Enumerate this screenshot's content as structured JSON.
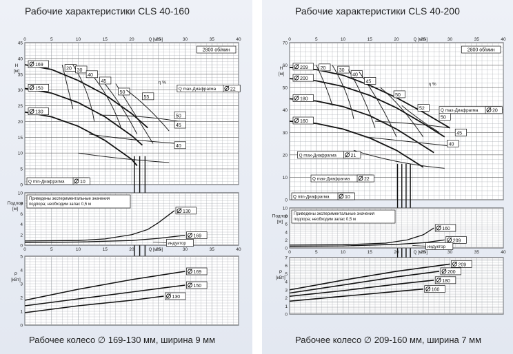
{
  "panels": [
    {
      "title": "Рабочие характеристики CLS 40-160",
      "caption": "Рабочее колесо ∅ 169-130 мм, ширина 9 мм"
    },
    {
      "title": "Рабочие характеристики CLS 40-200",
      "caption": "Рабочее колесо ∅ 209-160 мм, ширина 7 мм"
    }
  ],
  "chart_data": [
    {
      "type": "line",
      "title": "Рабочие характеристики CLS 40-160",
      "x_label": "Q [м³/ч]",
      "xlim": [
        0,
        40
      ],
      "x_ticks": [
        0,
        5,
        10,
        15,
        20,
        25,
        30,
        35,
        40
      ],
      "speed_label": "2800 об/мин",
      "head": {
        "y_label": "H [м]",
        "ylim": [
          0,
          45
        ],
        "y_ticks": [
          0,
          5,
          10,
          15,
          20,
          25,
          30,
          35,
          40,
          45
        ],
        "series": [
          {
            "name": "169",
            "x": [
              0,
              5,
              10,
              15,
              20,
              23
            ],
            "y": [
              38,
              36.5,
              33,
              28.5,
              22.5,
              18
            ]
          },
          {
            "name": "150",
            "x": [
              0,
              5,
              10,
              15,
              20,
              22
            ],
            "y": [
              30.5,
              29,
              26,
              21.5,
              15.5,
              12.5
            ]
          },
          {
            "name": "130",
            "x": [
              0,
              5,
              10,
              15,
              20,
              21
            ],
            "y": [
              23,
              21.5,
              18.5,
              14,
              8,
              6
            ]
          }
        ],
        "efficiency": {
          "unit": "η %",
          "labels": [
            "20",
            "30",
            "40",
            "45",
            "50",
            "55",
            "50",
            "45",
            "40"
          ]
        },
        "q_max_label": "Q max-Диафрагма",
        "q_max_diameter": "22",
        "q_min_label": "Q min-Диафрагма",
        "q_min_diameter": "10"
      },
      "npsh": {
        "y_label": "Подпор [м]",
        "ylim": [
          0,
          10
        ],
        "y_ticks": [
          0,
          2,
          4,
          6,
          8,
          10
        ],
        "note_lines": [
          "Приведены экспериментальные значения",
          "подпора; необходим запас 0,5 м"
        ],
        "inducer_label": "индуктор",
        "series": [
          {
            "name": "130",
            "x": [
              0,
              10,
              15,
              20,
              23,
              25,
              28
            ],
            "y": [
              0.8,
              0.9,
              1.2,
              2,
              3,
              4.3,
              6.6
            ]
          },
          {
            "name": "169",
            "x": [
              0,
              10,
              20,
              25,
              30
            ],
            "y": [
              0.5,
              0.6,
              0.9,
              1.3,
              1.9
            ]
          }
        ]
      },
      "power": {
        "y_label": "P [кВт]",
        "ylim": [
          0,
          5
        ],
        "y_ticks": [
          0,
          1,
          2,
          3,
          4,
          5
        ],
        "series": [
          {
            "name": "169",
            "x": [
              0,
              10,
              20,
              30
            ],
            "y": [
              1.8,
              2.6,
              3.3,
              3.9
            ]
          },
          {
            "name": "150",
            "x": [
              0,
              10,
              20,
              30
            ],
            "y": [
              1.4,
              1.9,
              2.4,
              2.9
            ]
          },
          {
            "name": "130",
            "x": [
              0,
              10,
              20,
              26
            ],
            "y": [
              0.9,
              1.4,
              1.8,
              2.1
            ]
          }
        ]
      }
    },
    {
      "type": "line",
      "title": "Рабочие характеристики CLS 40-200",
      "x_label": "Q [м³/ч]",
      "xlim": [
        0,
        40
      ],
      "x_ticks": [
        0,
        5,
        10,
        15,
        20,
        25,
        30,
        35,
        40
      ],
      "speed_label": "2800 об/мин",
      "head": {
        "y_label": "H [м]",
        "ylim": [
          0,
          70
        ],
        "y_ticks": [
          0,
          10,
          20,
          30,
          40,
          50,
          60,
          70
        ],
        "series": [
          {
            "name": "209",
            "x": [
              0,
              5,
              10,
              15,
              20,
              25,
              30
            ],
            "y": [
              59,
              58,
              55.5,
              51,
              45.5,
              39,
              32
            ]
          },
          {
            "name": "200",
            "x": [
              0,
              5,
              10,
              15,
              20,
              25,
              29
            ],
            "y": [
              54,
              53,
              50.5,
              46.5,
              41,
              34,
              28
            ]
          },
          {
            "name": "180",
            "x": [
              0,
              5,
              10,
              15,
              20,
              25,
              27
            ],
            "y": [
              45,
              44,
              41.5,
              37.5,
              31.5,
              24,
              21
            ]
          },
          {
            "name": "160",
            "x": [
              0,
              5,
              10,
              15,
              20,
              25
            ],
            "y": [
              35,
              34,
              31.5,
              27.5,
              22,
              14.5
            ]
          }
        ],
        "efficiency": {
          "unit": "η %",
          "labels": [
            "20",
            "30",
            "40",
            "45",
            "50",
            "52",
            "50",
            "45",
            "40"
          ]
        },
        "q_max_labels": [
          {
            "text": "Q max-Диафрагма",
            "diameter": "20"
          },
          {
            "text": "Q max-Диафрагма",
            "diameter": "21"
          },
          {
            "text": "Q max-Диафрагма",
            "diameter": "22"
          }
        ],
        "q_min_label": "Q min-Диафрагма",
        "q_min_diameter": "10"
      },
      "npsh": {
        "y_label": "Подпор [м]",
        "ylim": [
          0,
          10
        ],
        "y_ticks": [
          0,
          2,
          4,
          6,
          8,
          10
        ],
        "note_lines": [
          "Приведены экспериментальные значения",
          "подпора; необходим запас 0,5 м"
        ],
        "inducer_label": "индуктор",
        "series": [
          {
            "name": "160",
            "x": [
              0,
              10,
              18,
              22,
              25,
              27
            ],
            "y": [
              0.7,
              0.8,
              1.2,
              2,
              3.3,
              5
            ]
          },
          {
            "name": "209",
            "x": [
              0,
              10,
              20,
              25,
              29
            ],
            "y": [
              0.4,
              0.5,
              0.9,
              1.3,
              2
            ]
          }
        ]
      },
      "power": {
        "y_label": "P [кВт]",
        "ylim": [
          0,
          7
        ],
        "y_ticks": [
          0,
          1,
          2,
          3,
          4,
          5,
          6,
          7
        ],
        "series": [
          {
            "name": "209",
            "x": [
              0,
              10,
              20,
              30
            ],
            "y": [
              3.0,
              4.2,
              5.3,
              6.2
            ]
          },
          {
            "name": "200",
            "x": [
              0,
              10,
              20,
              28
            ],
            "y": [
              2.6,
              3.6,
              4.6,
              5.3
            ]
          },
          {
            "name": "180",
            "x": [
              0,
              10,
              20,
              27
            ],
            "y": [
              2.2,
              2.9,
              3.7,
              4.2
            ]
          },
          {
            "name": "160",
            "x": [
              0,
              10,
              20,
              25
            ],
            "y": [
              1.6,
              2.2,
              2.8,
              3.1
            ]
          }
        ]
      }
    }
  ]
}
